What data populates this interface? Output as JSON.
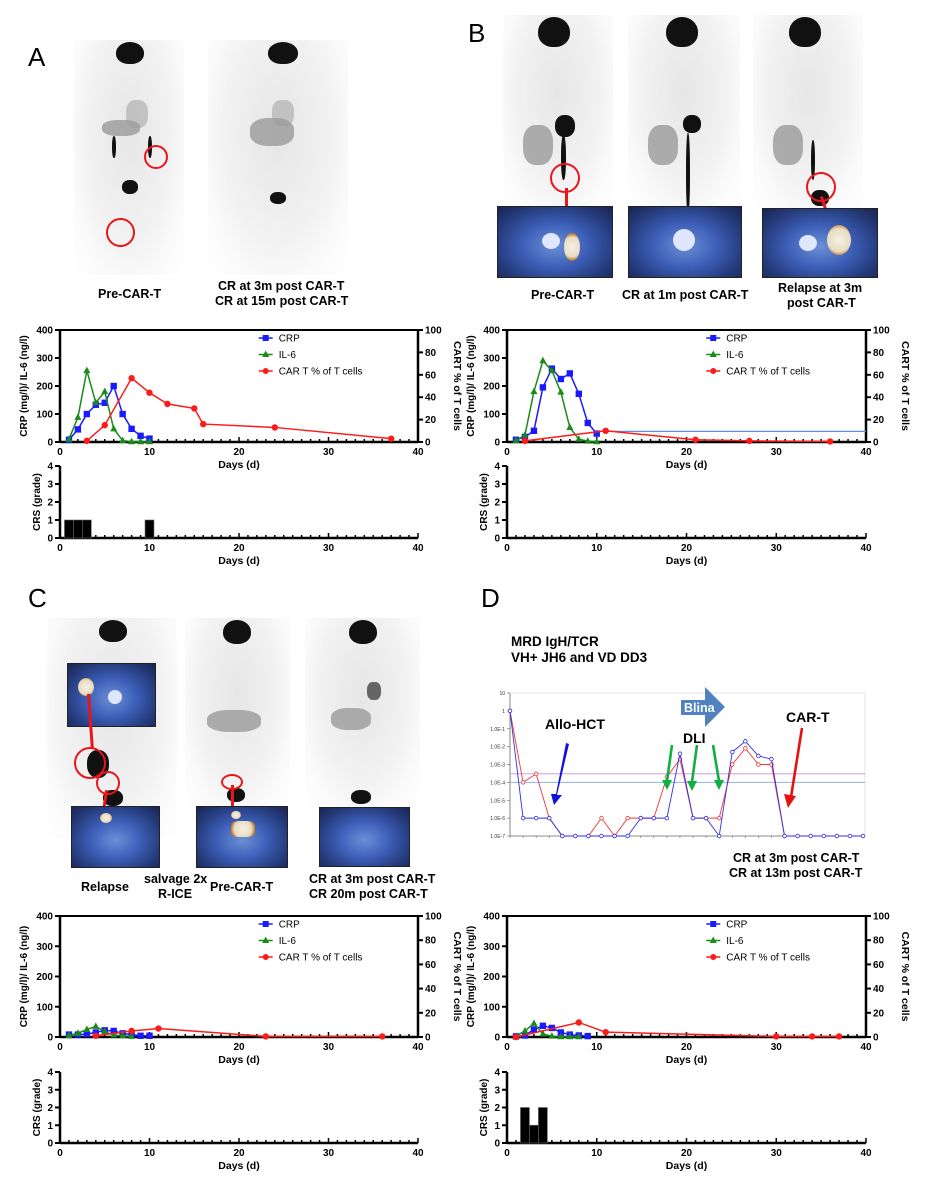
{
  "panels": {
    "A": {
      "letter": "A",
      "captions": [
        "Pre-CAR-T",
        "CR at 3m post CAR-T",
        "CR at 15m post CAR-T"
      ]
    },
    "B": {
      "letter": "B",
      "captions": [
        "Pre-CAR-T",
        "CR at 1m post CAR-T",
        "Relapse at 3m",
        "post CAR-T"
      ]
    },
    "C": {
      "letter": "C",
      "captions": [
        "Relapse",
        "salvage 2x",
        "R-ICE",
        "Pre-CAR-T",
        "CR at 3m post CAR-T",
        "CR 20m post CAR-T"
      ]
    },
    "D": {
      "letter": "D",
      "mrd_title_1": "MRD IgH/TCR",
      "mrd_title_2": "VH+ JH6 and VD DD3",
      "captions": [
        "CR at 3m post CAR-T",
        "CR at 13m post CAR-T"
      ]
    }
  },
  "colors": {
    "crp": "#1a1aff",
    "il6": "#1a8a1a",
    "cart": "#ff1a1a",
    "refline": "#5b8fd6",
    "mrd_blue": "#3030e0",
    "mrd_red": "#f03838",
    "mrd_thr_purple": "#c890d8",
    "mrd_thr_blue": "#90b0f0",
    "blina_arrow": "#4f82be",
    "arrow_blue": "#1010e0",
    "arrow_green": "#10b040",
    "arrow_red": "#e81010"
  },
  "chart_data": [
    {
      "id": "A-lab",
      "type": "line",
      "panel": "A",
      "xlabel": "Days (d)",
      "ylabel": "CRP (mg/l)/ IL-6 (ng/l)",
      "y2label": "CART % of T cells",
      "xlim": [
        0,
        40
      ],
      "ylim": [
        0,
        400
      ],
      "y2lim": [
        0,
        100
      ],
      "xticks": [
        "0",
        "10",
        "20",
        "30",
        "40"
      ],
      "yticks": [
        "0",
        "100",
        "200",
        "300",
        "400"
      ],
      "y2ticks": [
        "0",
        "20",
        "40",
        "60",
        "80",
        "100"
      ],
      "legend": [
        "CRP",
        "IL-6",
        "CAR T % of T cells"
      ],
      "legend_position": "top-right",
      "series": [
        {
          "name": "CRP",
          "axis": "left",
          "marker": "square",
          "x": [
            1,
            2,
            3,
            4,
            5,
            6,
            7,
            8,
            9,
            10
          ],
          "values": [
            8,
            45,
            100,
            133,
            140,
            200,
            100,
            47,
            22,
            12
          ]
        },
        {
          "name": "IL-6",
          "axis": "left",
          "marker": "triangle",
          "x": [
            1,
            2,
            3,
            4,
            5,
            6,
            7,
            8,
            9,
            10
          ],
          "values": [
            10,
            88,
            255,
            140,
            180,
            47,
            5,
            1,
            1,
            1
          ]
        },
        {
          "name": "CAR T % of T cells",
          "axis": "right",
          "marker": "circle",
          "x": [
            3,
            5,
            8,
            10,
            12,
            15,
            16,
            24,
            37
          ],
          "values": [
            1,
            15,
            57,
            44,
            34,
            30,
            16,
            13,
            3
          ]
        }
      ]
    },
    {
      "id": "A-crs",
      "type": "bar",
      "panel": "A",
      "xlabel": "Days (d)",
      "ylabel": "CRS (grade)",
      "xlim": [
        0,
        40
      ],
      "ylim": [
        0,
        4
      ],
      "xticks": [
        "0",
        "10",
        "20",
        "30",
        "40"
      ],
      "yticks": [
        "0",
        "1",
        "2",
        "3",
        "4"
      ],
      "x": [
        1,
        2,
        3,
        10
      ],
      "values": [
        1,
        1,
        1,
        1
      ]
    },
    {
      "id": "B-lab",
      "type": "line",
      "panel": "B",
      "xlabel": "Days (d)",
      "ylabel": "CRP (mg/l)/ IL-6 (ng/l)",
      "y2label": "CART % of T cells",
      "xlim": [
        0,
        40
      ],
      "ylim": [
        0,
        400
      ],
      "y2lim": [
        0,
        100
      ],
      "xticks": [
        "0",
        "10",
        "20",
        "30",
        "40"
      ],
      "yticks": [
        "0",
        "100",
        "200",
        "300",
        "400"
      ],
      "y2ticks": [
        "0",
        "20",
        "40",
        "60",
        "80",
        "100"
      ],
      "legend": [
        "CRP",
        "IL-6",
        "CAR T % of T cells"
      ],
      "legend_position": "top-right",
      "reference_line": {
        "axis": "right",
        "value": 9.5,
        "from_x": 11,
        "to_x": 40
      },
      "series": [
        {
          "name": "CRP",
          "axis": "left",
          "marker": "square",
          "x": [
            1,
            2,
            3,
            4,
            5,
            6,
            7,
            8,
            9,
            10
          ],
          "values": [
            8,
            18,
            40,
            195,
            262,
            225,
            245,
            172,
            68,
            30
          ]
        },
        {
          "name": "IL-6",
          "axis": "left",
          "marker": "triangle",
          "x": [
            1,
            2,
            3,
            4,
            5,
            6,
            7,
            8,
            9,
            10
          ],
          "values": [
            5,
            25,
            180,
            290,
            255,
            178,
            52,
            10,
            3,
            1
          ]
        },
        {
          "name": "CAR T % of T cells",
          "axis": "right",
          "marker": "circle",
          "x": [
            2,
            11,
            21,
            27,
            36
          ],
          "values": [
            1,
            10,
            2,
            1,
            0.5
          ]
        }
      ]
    },
    {
      "id": "B-crs",
      "type": "bar",
      "panel": "B",
      "xlabel": "Days (d)",
      "ylabel": "CRS (grade)",
      "xlim": [
        0,
        40
      ],
      "ylim": [
        0,
        4
      ],
      "xticks": [
        "0",
        "10",
        "20",
        "30",
        "40"
      ],
      "yticks": [
        "0",
        "1",
        "2",
        "3",
        "4"
      ],
      "x": [],
      "values": []
    },
    {
      "id": "C-lab",
      "type": "line",
      "panel": "C",
      "xlabel": "Days (d)",
      "ylabel": "CRP (mg/l)/ IL-6 (ng/l)",
      "y2label": "CART % of T cells",
      "xlim": [
        0,
        40
      ],
      "ylim": [
        0,
        400
      ],
      "y2lim": [
        0,
        100
      ],
      "xticks": [
        "0",
        "10",
        "20",
        "30",
        "40"
      ],
      "yticks": [
        "0",
        "100",
        "200",
        "300",
        "400"
      ],
      "y2ticks": [
        "0",
        "20",
        "40",
        "60",
        "80",
        "100"
      ],
      "legend": [
        "CRP",
        "IL-6",
        "CAR T % of T cells"
      ],
      "legend_position": "top-right",
      "series": [
        {
          "name": "CRP",
          "axis": "left",
          "marker": "square",
          "x": [
            1,
            2,
            3,
            4,
            5,
            6,
            7,
            8,
            9,
            10
          ],
          "values": [
            8,
            8,
            10,
            15,
            22,
            20,
            12,
            8,
            4,
            4
          ]
        },
        {
          "name": "IL-6",
          "axis": "left",
          "marker": "triangle",
          "x": [
            1,
            2,
            3,
            4,
            5,
            6,
            7,
            8
          ],
          "values": [
            5,
            12,
            25,
            35,
            18,
            6,
            4,
            2
          ]
        },
        {
          "name": "CAR T % of T cells",
          "axis": "right",
          "marker": "circle",
          "x": [
            4,
            8,
            11,
            23,
            36
          ],
          "values": [
            1,
            5,
            7,
            0.5,
            0.5
          ]
        }
      ]
    },
    {
      "id": "C-crs",
      "type": "bar",
      "panel": "C",
      "xlabel": "Days (d)",
      "ylabel": "CRS (grade)",
      "xlim": [
        0,
        40
      ],
      "ylim": [
        0,
        4
      ],
      "xticks": [
        "0",
        "10",
        "20",
        "30",
        "40"
      ],
      "yticks": [
        "0",
        "1",
        "2",
        "3",
        "4"
      ],
      "x": [],
      "values": []
    },
    {
      "id": "D-mrd",
      "type": "line",
      "panel": "D",
      "title": "MRD IgH/TCR VH+ JH6 and VD DD3",
      "yscale": "log",
      "ylim": [
        1e-07,
        10
      ],
      "yticks": [
        "1.0E-7",
        "1.0E-6",
        "1.0E-5",
        "1.0E-4",
        "1.0E-3",
        "1.0E-2",
        "1.0E-1",
        "1",
        "10"
      ],
      "thresholds": [
        {
          "value": 0.0003,
          "color": "purple"
        },
        {
          "value": 0.0001,
          "color": "blue"
        }
      ],
      "annotations": [
        "Allo-HCT",
        "Blina",
        "DLI",
        "CAR-T"
      ],
      "series": [
        {
          "name": "blue",
          "marker": "open-circle",
          "values": [
            1,
            1e-06,
            1e-06,
            1e-06,
            1e-07,
            1e-07,
            1e-07,
            1e-07,
            1e-07,
            1e-07,
            1e-06,
            1e-06,
            1e-06,
            0.004,
            1e-06,
            1e-06,
            1e-07,
            0.005,
            0.02,
            0.003,
            0.002,
            1e-07,
            1e-07,
            1e-07,
            1e-07,
            1e-07,
            1e-07,
            1e-07
          ]
        },
        {
          "name": "red",
          "marker": "open-circle",
          "values": [
            1,
            0.0001,
            0.0003,
            1e-06,
            1e-07,
            1e-07,
            1e-07,
            1e-06,
            1e-07,
            1e-06,
            1e-06,
            1e-06,
            0.0002,
            0.002,
            1e-06,
            1e-06,
            1e-06,
            0.001,
            0.008,
            0.001,
            0.001,
            1e-07
          ]
        }
      ]
    },
    {
      "id": "D-lab",
      "type": "line",
      "panel": "D",
      "xlabel": "Days (d)",
      "ylabel": "CRP (mg/l)/ IL-6 (ng/l)",
      "y2label": "CART % of T cells",
      "xlim": [
        0,
        40
      ],
      "ylim": [
        0,
        400
      ],
      "y2lim": [
        0,
        100
      ],
      "xticks": [
        "0",
        "10",
        "20",
        "30",
        "40"
      ],
      "yticks": [
        "0",
        "100",
        "200",
        "300",
        "400"
      ],
      "y2ticks": [
        "0",
        "20",
        "40",
        "60",
        "80",
        "100"
      ],
      "legend": [
        "CRP",
        "IL-6",
        "CAR T % of T cells"
      ],
      "legend_position": "top-right",
      "series": [
        {
          "name": "CRP",
          "axis": "left",
          "marker": "square",
          "x": [
            1,
            2,
            3,
            4,
            5,
            6,
            7,
            8,
            9
          ],
          "values": [
            2,
            5,
            25,
            37,
            30,
            15,
            8,
            5,
            3
          ]
        },
        {
          "name": "IL-6",
          "axis": "left",
          "marker": "triangle",
          "x": [
            1,
            2,
            3,
            4,
            5,
            6,
            7,
            8
          ],
          "values": [
            3,
            20,
            45,
            10,
            3,
            1,
            1,
            1
          ]
        },
        {
          "name": "CAR T % of T cells",
          "axis": "right",
          "marker": "circle",
          "x": [
            1,
            8,
            11,
            30,
            34,
            37
          ],
          "values": [
            0,
            12,
            4,
            0.5,
            0.5,
            0.5
          ]
        }
      ]
    },
    {
      "id": "D-crs",
      "type": "bar",
      "panel": "D",
      "xlabel": "Days (d)",
      "ylabel": "CRS (grade)",
      "xlim": [
        0,
        40
      ],
      "ylim": [
        0,
        4
      ],
      "xticks": [
        "0",
        "10",
        "20",
        "30",
        "40"
      ],
      "yticks": [
        "0",
        "1",
        "2",
        "3",
        "4"
      ],
      "x": [
        2,
        3,
        4
      ],
      "values": [
        2,
        1,
        2
      ]
    }
  ]
}
